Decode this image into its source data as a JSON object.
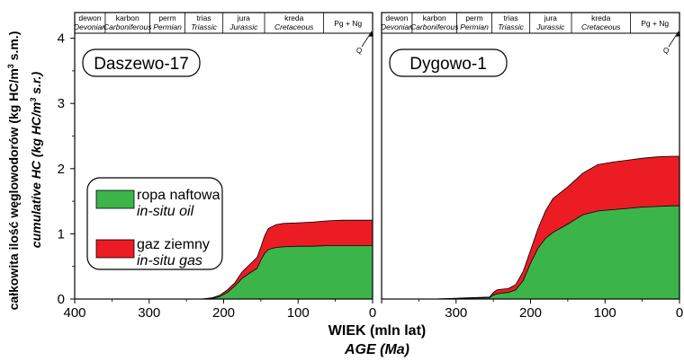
{
  "chart_data": {
    "type": "area",
    "xlabel": "WIEK (mln lat)",
    "xlabel_en": "AGE (Ma)",
    "ylabel": "całkowita ilość węglowodorów (kg HC/m³ s.m.)",
    "ylabel_en": "cumulative HC (kg HC/m³ s.r.)",
    "x_ticks": [
      "400",
      "300",
      "200",
      "100",
      "0"
    ],
    "x_ticks_right": [
      "300",
      "200",
      "100",
      "0"
    ],
    "y_ticks": [
      "0",
      "1",
      "2",
      "3",
      "4"
    ],
    "xlim": [
      400,
      0
    ],
    "ylim": [
      0,
      4.2
    ],
    "grid": false,
    "legend": {
      "position": "lower-left (left panel)",
      "entries": [
        {
          "name": "ropa naftowa",
          "name_en": "in-situ oil",
          "color": "#3bb44a"
        },
        {
          "name": "gaz ziemny",
          "name_en": "in-situ gas",
          "color": "#ec1c24"
        }
      ]
    },
    "periods": [
      {
        "pl": "dewon",
        "en": "Devonian",
        "start": 400,
        "end": 359
      },
      {
        "pl": "karbon",
        "en": "Carboniferous",
        "start": 359,
        "end": 299
      },
      {
        "pl": "perm",
        "en": "Permian",
        "start": 299,
        "end": 252
      },
      {
        "pl": "trias",
        "en": "Triassic",
        "start": 252,
        "end": 201
      },
      {
        "pl": "jura",
        "en": "Jurassic",
        "start": 201,
        "end": 145
      },
      {
        "pl": "kreda",
        "en": "Cretaceous",
        "start": 145,
        "end": 66
      },
      {
        "pl": "Pg + Ng",
        "en": "",
        "start": 66,
        "end": 0
      }
    ],
    "quaternary_label": "Q",
    "panels": [
      {
        "title": "Daszewo-17",
        "series": [
          {
            "name": "ropa naftowa",
            "x": [
              400,
              230,
              215,
              205,
              195,
              185,
              175,
              165,
              155,
              150,
              145,
              140,
              130,
              120,
              100,
              80,
              60,
              40,
              20,
              0
            ],
            "values": [
              0,
              0,
              0.01,
              0.04,
              0.1,
              0.2,
              0.32,
              0.4,
              0.47,
              0.6,
              0.7,
              0.76,
              0.79,
              0.8,
              0.81,
              0.81,
              0.82,
              0.82,
              0.82,
              0.82
            ]
          },
          {
            "name": "gaz ziemny",
            "x": [
              400,
              230,
              215,
              205,
              195,
              185,
              175,
              165,
              155,
              150,
              145,
              140,
              130,
              120,
              100,
              80,
              60,
              40,
              20,
              0
            ],
            "values": [
              0,
              0,
              0.02,
              0.06,
              0.14,
              0.25,
              0.42,
              0.53,
              0.64,
              0.8,
              0.97,
              1.08,
              1.14,
              1.16,
              1.17,
              1.18,
              1.2,
              1.21,
              1.21,
              1.21
            ]
          }
        ]
      },
      {
        "title": "Dygowo-1",
        "series": [
          {
            "name": "ropa naftowa",
            "x": [
              400,
              330,
              255,
              250,
              245,
              240,
              230,
              220,
              210,
              200,
              190,
              180,
              170,
              150,
              130,
              110,
              90,
              70,
              50,
              30,
              10,
              0
            ],
            "values": [
              0,
              0,
              0.02,
              0.06,
              0.08,
              0.09,
              0.1,
              0.14,
              0.28,
              0.55,
              0.78,
              0.93,
              1.02,
              1.15,
              1.29,
              1.35,
              1.37,
              1.39,
              1.41,
              1.42,
              1.43,
              1.43
            ]
          },
          {
            "name": "gaz ziemny",
            "x": [
              400,
              330,
              255,
              250,
              245,
              240,
              230,
              220,
              210,
              200,
              190,
              180,
              170,
              150,
              130,
              110,
              90,
              70,
              50,
              30,
              10,
              0
            ],
            "values": [
              0,
              0,
              0.03,
              0.1,
              0.14,
              0.15,
              0.16,
              0.22,
              0.42,
              0.75,
              1.08,
              1.35,
              1.54,
              1.72,
              1.93,
              2.06,
              2.1,
              2.13,
              2.16,
              2.18,
              2.19,
              2.19
            ]
          }
        ]
      }
    ]
  }
}
